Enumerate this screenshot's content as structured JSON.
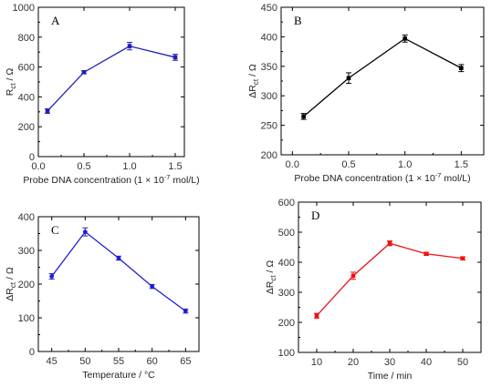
{
  "chart_data": [
    {
      "panel": "A",
      "type": "line",
      "color": "#1f1fb4",
      "marker": "square",
      "x": [
        0.1,
        0.5,
        1.0,
        1.5
      ],
      "y": [
        305,
        565,
        740,
        665
      ],
      "yerr": [
        15,
        10,
        25,
        20
      ],
      "xlim": [
        0.0,
        1.6
      ],
      "ylim": [
        0,
        1000
      ],
      "xticks": [
        0.0,
        0.5,
        1.0,
        1.5
      ],
      "xtick_labels": [
        "0.0",
        "0.5",
        "1.0",
        "1.5"
      ],
      "yticks": [
        0,
        200,
        400,
        600,
        800,
        1000
      ],
      "ytick_labels": [
        "0",
        "200",
        "400",
        "600",
        "800",
        "1000"
      ],
      "xlabel": "Probe DNA concentration (1 × 10",
      "xlabel_sup": "-7",
      "xlabel_suffix": " mol/L)",
      "ylabel_main": "R",
      "ylabel_sub": "ct",
      "ylabel_suffix": " / Ω"
    },
    {
      "panel": "B",
      "type": "line",
      "color": "#000000",
      "marker": "square",
      "x": [
        0.1,
        0.5,
        1.0,
        1.5
      ],
      "y": [
        265,
        330,
        397,
        347
      ],
      "yerr": [
        5,
        9,
        6,
        6
      ],
      "xlim": [
        -0.1,
        1.7
      ],
      "ylim": [
        200,
        450
      ],
      "xticks": [
        0.0,
        0.5,
        1.0,
        1.5
      ],
      "xtick_labels": [
        "0.0",
        "0.5",
        "1.0",
        "1.5"
      ],
      "yticks": [
        200,
        250,
        300,
        350,
        400,
        450
      ],
      "ytick_labels": [
        "200",
        "250",
        "300",
        "350",
        "400",
        "450"
      ],
      "xlabel": "Probe DNA concentration (1 × 10",
      "xlabel_sup": "-7",
      "xlabel_suffix": " mol/L)",
      "ylabel_main": "ΔR",
      "ylabel_sub": "ct",
      "ylabel_suffix": " / Ω"
    },
    {
      "panel": "C",
      "type": "line",
      "color": "#1f1fd6",
      "marker": "circle",
      "x": [
        45,
        50,
        55,
        60,
        65
      ],
      "y": [
        223,
        355,
        277,
        193,
        120
      ],
      "yerr": [
        8,
        12,
        6,
        6,
        6
      ],
      "xlim": [
        43,
        67
      ],
      "ylim": [
        0,
        400
      ],
      "xticks": [
        45,
        50,
        55,
        60,
        65
      ],
      "xtick_labels": [
        "45",
        "50",
        "55",
        "60",
        "65"
      ],
      "yticks": [
        0,
        100,
        200,
        300,
        400
      ],
      "ytick_labels": [
        "0",
        "100",
        "200",
        "300",
        "400"
      ],
      "xlabel": "Temperature / °C",
      "xlabel_sup": "",
      "xlabel_suffix": "",
      "ylabel_main": "ΔR",
      "ylabel_sub": "ct",
      "ylabel_suffix": " / Ω"
    },
    {
      "panel": "D",
      "type": "line",
      "color": "#ee1111",
      "marker": "square",
      "x": [
        10,
        20,
        30,
        40,
        50
      ],
      "y": [
        222,
        355,
        463,
        428,
        413
      ],
      "yerr": [
        8,
        12,
        8,
        5,
        5
      ],
      "xlim": [
        5,
        55
      ],
      "ylim": [
        100,
        600
      ],
      "xticks": [
        10,
        20,
        30,
        40,
        50
      ],
      "xtick_labels": [
        "10",
        "20",
        "30",
        "40",
        "50"
      ],
      "yticks": [
        100,
        200,
        300,
        400,
        500,
        600
      ],
      "ytick_labels": [
        "100",
        "200",
        "300",
        "400",
        "500",
        "600"
      ],
      "xlabel": "Time / min",
      "xlabel_sup": "",
      "xlabel_suffix": "",
      "ylabel_main": "ΔR",
      "ylabel_sub": "ct",
      "ylabel_suffix": " / Ω"
    }
  ]
}
